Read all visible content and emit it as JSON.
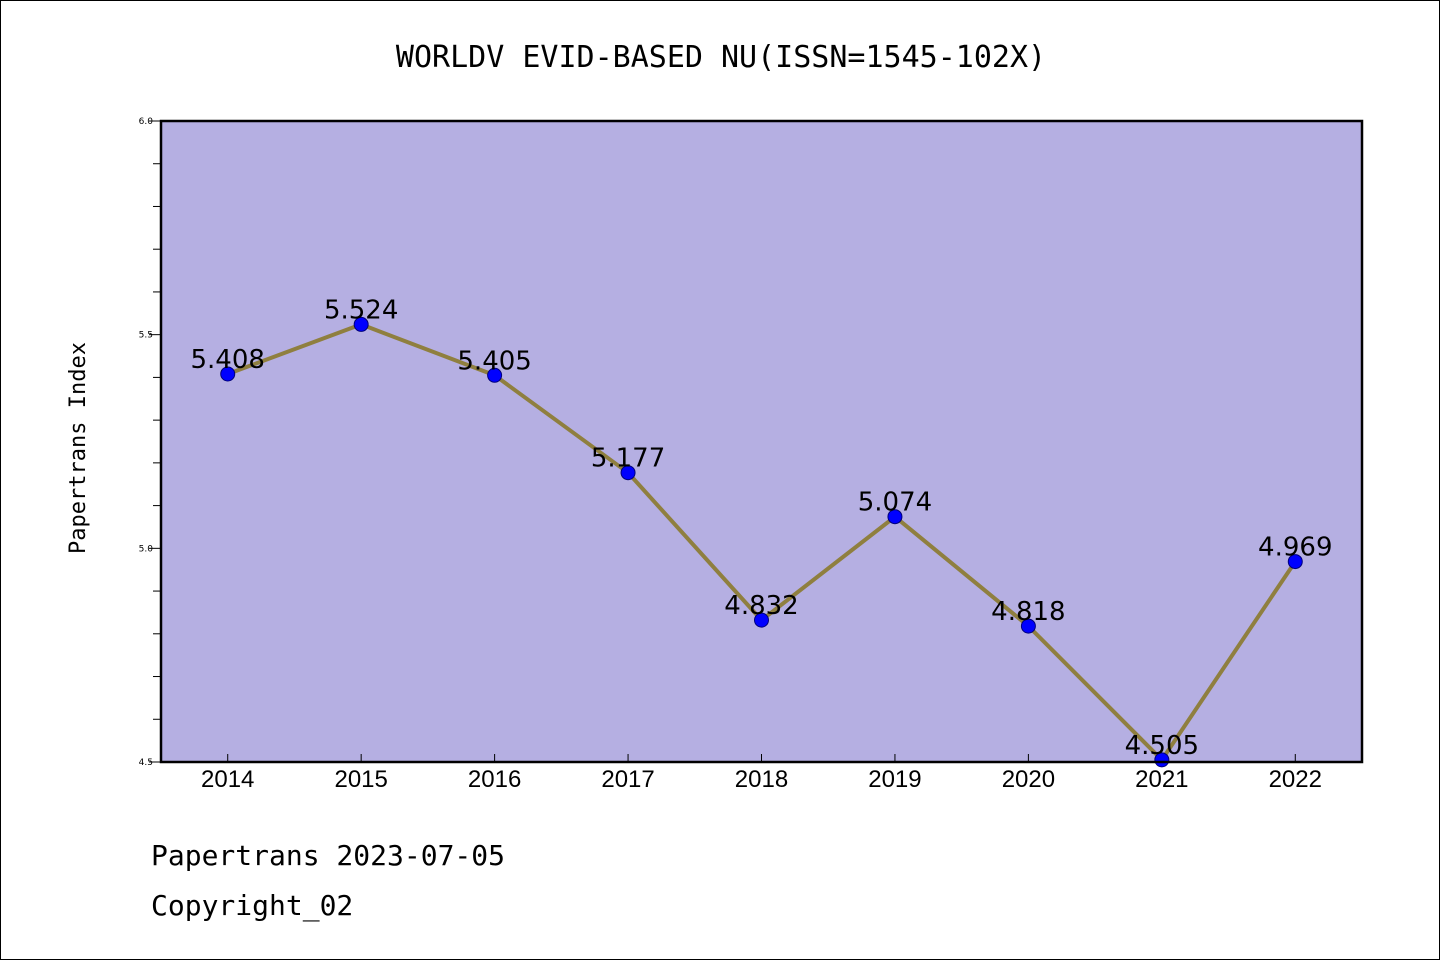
{
  "colors": {
    "plot_background": "#b5afe2",
    "line": "#8f7f3f",
    "marker": "#0000ff",
    "axes": "#000000"
  },
  "chart_data": {
    "type": "line",
    "title": "WORLDV EVID-BASED NU(ISSN=1545-102X)",
    "xlabel": "",
    "ylabel": "Papertrans Index",
    "categories": [
      "2014",
      "2015",
      "2016",
      "2017",
      "2018",
      "2019",
      "2020",
      "2021",
      "2022"
    ],
    "series": [
      {
        "values": [
          5.408,
          5.524,
          5.405,
          5.177,
          4.832,
          5.074,
          4.818,
          4.505,
          4.969
        ],
        "data_labels": [
          "5.408",
          "5.524",
          "5.405",
          "5.177",
          "4.832",
          "5.074",
          "4.818",
          "4.505",
          "4.969"
        ]
      }
    ],
    "ylim": [
      4.5,
      6.0
    ],
    "yticks": [
      "4.5",
      "5.0",
      "5.5",
      "6.0"
    ],
    "grid": false,
    "legend": "none"
  },
  "footer": {
    "line1": "Papertrans 2023-07-05",
    "line2": "Copyright_02"
  }
}
